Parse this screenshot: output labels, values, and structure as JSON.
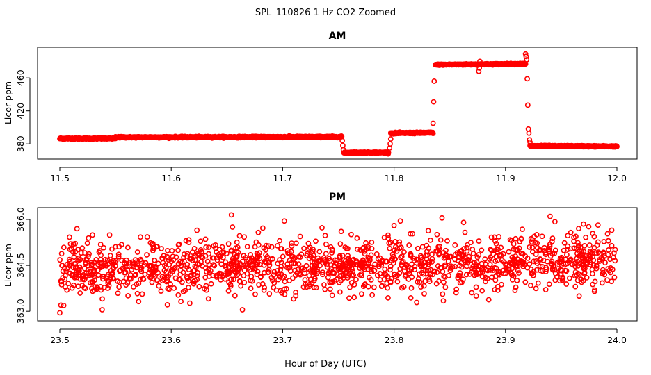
{
  "figure_title": "SPL_110826  1 Hz CO2 Zoomed",
  "shared_xlabel": "Hour of Day (UTC)",
  "colors": {
    "points": "#ff0000",
    "axes": "#000000",
    "background": "#ffffff"
  },
  "chart_data": [
    {
      "type": "scatter",
      "title": "AM",
      "ylabel": "Licor ppm",
      "xlim": [
        11.5,
        12.0
      ],
      "ylim": [
        365,
        493
      ],
      "xticks": [
        "11.5",
        "11.6",
        "11.7",
        "11.8",
        "11.9",
        "12.0"
      ],
      "xtick_values": [
        11.5,
        11.6,
        11.7,
        11.8,
        11.9,
        12.0
      ],
      "yticks": [
        "380",
        "420",
        "460"
      ],
      "ytick_values": [
        380,
        420,
        460
      ],
      "segments": [
        {
          "x_start": 11.5,
          "x_end": 11.55,
          "y_start": 386.5,
          "y_end": 386.5,
          "noise": 0.8
        },
        {
          "x_start": 11.55,
          "x_end": 11.753,
          "y_start": 388.0,
          "y_end": 388.5,
          "noise": 0.8
        },
        {
          "x_start": 11.755,
          "x_end": 11.795,
          "y_start": 369.5,
          "y_end": 369.5,
          "noise": 0.8
        },
        {
          "x_start": 11.797,
          "x_end": 11.835,
          "y_start": 393.0,
          "y_end": 393.5,
          "noise": 0.8
        },
        {
          "x_start": 11.837,
          "x_end": 11.918,
          "y_start": 476.0,
          "y_end": 477.0,
          "noise": 0.7
        },
        {
          "x_start": 11.922,
          "x_end": 12.0,
          "y_start": 377.5,
          "y_end": 377.0,
          "noise": 0.7
        }
      ],
      "transition_points": [
        {
          "x": 11.7535,
          "y": 384
        },
        {
          "x": 11.754,
          "y": 378
        },
        {
          "x": 11.7545,
          "y": 373
        },
        {
          "x": 11.796,
          "y": 375
        },
        {
          "x": 11.7965,
          "y": 380
        },
        {
          "x": 11.797,
          "y": 386
        },
        {
          "x": 11.835,
          "y": 405
        },
        {
          "x": 11.8355,
          "y": 431
        },
        {
          "x": 11.836,
          "y": 456
        },
        {
          "x": 11.876,
          "y": 468
        },
        {
          "x": 11.8765,
          "y": 472
        },
        {
          "x": 11.877,
          "y": 480
        },
        {
          "x": 11.918,
          "y": 489
        },
        {
          "x": 11.9185,
          "y": 486
        },
        {
          "x": 11.919,
          "y": 482
        },
        {
          "x": 11.9195,
          "y": 459
        },
        {
          "x": 11.92,
          "y": 427
        },
        {
          "x": 11.9205,
          "y": 398
        },
        {
          "x": 11.921,
          "y": 393
        },
        {
          "x": 11.9215,
          "y": 385
        },
        {
          "x": 11.922,
          "y": 382
        }
      ]
    },
    {
      "type": "scatter",
      "title": "PM",
      "ylabel": "Licor ppm",
      "xlim": [
        23.5,
        24.0
      ],
      "ylim": [
        362.8,
        366.25
      ],
      "xticks": [
        "23.5",
        "23.6",
        "23.7",
        "23.8",
        "23.9",
        "24.0"
      ],
      "xtick_values": [
        23.5,
        23.6,
        23.7,
        23.8,
        23.9,
        24.0
      ],
      "yticks": [
        "363.0",
        "364.5",
        "366.0"
      ],
      "ytick_values": [
        363.0,
        364.5,
        366.0
      ],
      "trend": {
        "x_start": 23.5,
        "x_end": 24.0,
        "y_start": 364.35,
        "y_end": 364.65
      },
      "noise_sd": 0.45,
      "n_points": 1500,
      "outliers": [
        {
          "x": 23.5,
          "y": 362.95
        },
        {
          "x": 23.501,
          "y": 363.2
        },
        {
          "x": 23.538,
          "y": 363.05
        },
        {
          "x": 23.654,
          "y": 366.15
        },
        {
          "x": 23.655,
          "y": 365.75
        },
        {
          "x": 23.843,
          "y": 366.05
        },
        {
          "x": 23.94,
          "y": 366.1
        },
        {
          "x": 23.8,
          "y": 365.8
        },
        {
          "x": 23.97,
          "y": 365.85
        }
      ]
    }
  ]
}
